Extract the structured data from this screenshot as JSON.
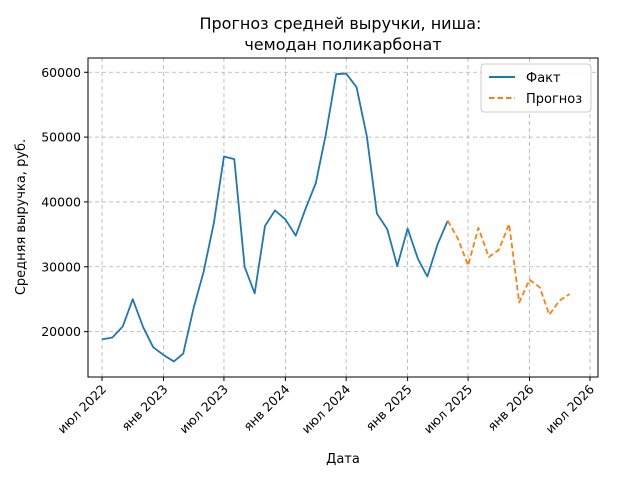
{
  "chart_data": {
    "type": "line",
    "title": "Прогноз средней выручки, ниша:\nчемодан поликарбонат",
    "xlabel": "Дата",
    "ylabel": "Средняя выручка, руб.",
    "x_ticks": [
      {
        "date": "2022-07-01",
        "label": "июл 2022"
      },
      {
        "date": "2023-01-01",
        "label": "янв 2023"
      },
      {
        "date": "2023-07-01",
        "label": "июл 2023"
      },
      {
        "date": "2024-01-01",
        "label": "янв 2024"
      },
      {
        "date": "2024-07-01",
        "label": "июл 2024"
      },
      {
        "date": "2025-01-01",
        "label": "янв 2025"
      },
      {
        "date": "2025-07-01",
        "label": "июл 2025"
      },
      {
        "date": "2026-01-01",
        "label": "янв 2026"
      },
      {
        "date": "2026-07-01",
        "label": "июл 2026"
      }
    ],
    "y_ticks": [
      20000,
      30000,
      40000,
      50000,
      60000
    ],
    "xlim": [
      "2022-05-20",
      "2026-07-25"
    ],
    "ylim": [
      13000,
      62200
    ],
    "grid": true,
    "legend_position": "top-right",
    "series": [
      {
        "name": "Факт",
        "color": "#1f77b4",
        "style": "solid",
        "points": [
          {
            "x": "2022-07-01",
            "y": 18800
          },
          {
            "x": "2022-08-01",
            "y": 19100
          },
          {
            "x": "2022-09-01",
            "y": 20800
          },
          {
            "x": "2022-10-01",
            "y": 25000
          },
          {
            "x": "2022-11-01",
            "y": 20700
          },
          {
            "x": "2022-12-01",
            "y": 17600
          },
          {
            "x": "2023-01-01",
            "y": 16400
          },
          {
            "x": "2023-02-01",
            "y": 15400
          },
          {
            "x": "2023-03-01",
            "y": 16600
          },
          {
            "x": "2023-04-01",
            "y": 23600
          },
          {
            "x": "2023-05-01",
            "y": 29200
          },
          {
            "x": "2023-06-01",
            "y": 36800
          },
          {
            "x": "2023-07-01",
            "y": 47000
          },
          {
            "x": "2023-08-01",
            "y": 46600
          },
          {
            "x": "2023-09-01",
            "y": 30000
          },
          {
            "x": "2023-10-01",
            "y": 25900
          },
          {
            "x": "2023-11-01",
            "y": 36300
          },
          {
            "x": "2023-12-01",
            "y": 38700
          },
          {
            "x": "2024-01-01",
            "y": 37300
          },
          {
            "x": "2024-02-01",
            "y": 34800
          },
          {
            "x": "2024-03-01",
            "y": 38900
          },
          {
            "x": "2024-04-01",
            "y": 42900
          },
          {
            "x": "2024-05-01",
            "y": 50400
          },
          {
            "x": "2024-06-01",
            "y": 59700
          },
          {
            "x": "2024-07-01",
            "y": 59800
          },
          {
            "x": "2024-08-01",
            "y": 57700
          },
          {
            "x": "2024-09-01",
            "y": 50100
          },
          {
            "x": "2024-10-01",
            "y": 38200
          },
          {
            "x": "2024-11-01",
            "y": 35800
          },
          {
            "x": "2024-12-01",
            "y": 30100
          },
          {
            "x": "2025-01-01",
            "y": 35900
          },
          {
            "x": "2025-02-01",
            "y": 31200
          },
          {
            "x": "2025-03-01",
            "y": 28500
          },
          {
            "x": "2025-04-01",
            "y": 33500
          },
          {
            "x": "2025-05-01",
            "y": 37100
          }
        ]
      },
      {
        "name": "Прогноз",
        "color": "#ff7f0e",
        "style": "dashed",
        "points": [
          {
            "x": "2025-05-01",
            "y": 37100
          },
          {
            "x": "2025-06-01",
            "y": 34300
          },
          {
            "x": "2025-07-01",
            "y": 30200
          },
          {
            "x": "2025-08-01",
            "y": 36000
          },
          {
            "x": "2025-09-01",
            "y": 31500
          },
          {
            "x": "2025-10-01",
            "y": 32600
          },
          {
            "x": "2025-11-01",
            "y": 36600
          },
          {
            "x": "2025-12-01",
            "y": 24500
          },
          {
            "x": "2026-01-01",
            "y": 28000
          },
          {
            "x": "2026-02-01",
            "y": 26800
          },
          {
            "x": "2026-03-01",
            "y": 22600
          },
          {
            "x": "2026-04-01",
            "y": 24800
          },
          {
            "x": "2026-05-01",
            "y": 25800
          }
        ]
      }
    ]
  }
}
